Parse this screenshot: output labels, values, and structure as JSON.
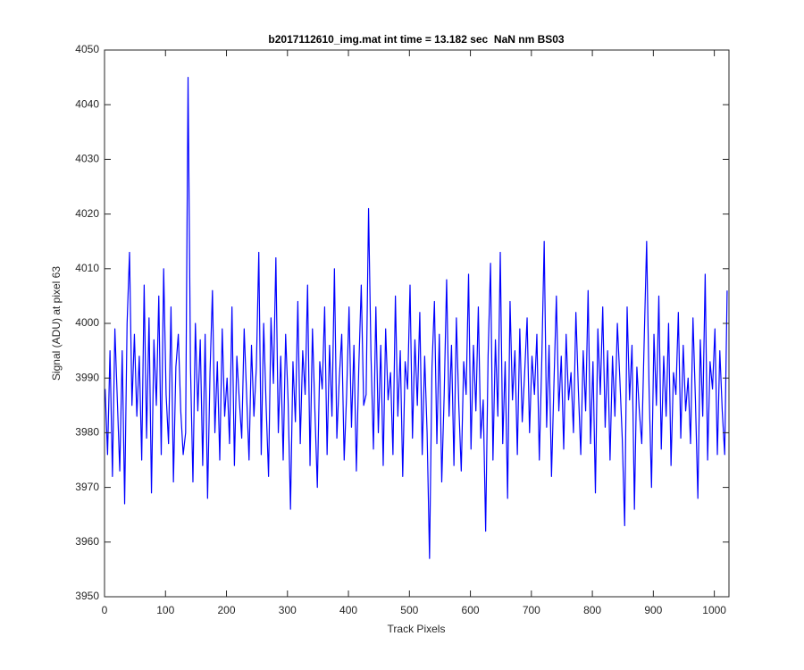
{
  "chart_data": {
    "type": "line",
    "title": "b2017112610_img.mat int time = 13.182 sec  NaN nm BS03",
    "x_label": "Track Pixels",
    "y_label": "Signal (ADU) at pixel 63",
    "xlim": [
      0,
      1024
    ],
    "ylim": [
      3950,
      4050
    ],
    "xticks": [
      0,
      100,
      200,
      300,
      400,
      500,
      600,
      700,
      800,
      900,
      1000
    ],
    "yticks": [
      3950,
      3960,
      3970,
      3980,
      3990,
      4000,
      4010,
      4020,
      4030,
      4040,
      4050
    ],
    "grid": false,
    "series": [
      {
        "color": "#0000ff",
        "x": [
          1,
          5,
          9,
          13,
          17,
          21,
          25,
          29,
          33,
          37,
          41,
          45,
          49,
          53,
          57,
          61,
          65,
          69,
          73,
          77,
          81,
          85,
          89,
          93,
          97,
          101,
          105,
          109,
          113,
          117,
          121,
          125,
          129,
          133,
          137,
          141,
          145,
          149,
          153,
          157,
          161,
          165,
          169,
          173,
          177,
          181,
          185,
          189,
          193,
          197,
          201,
          205,
          209,
          213,
          217,
          221,
          225,
          229,
          233,
          237,
          241,
          245,
          249,
          253,
          257,
          261,
          265,
          269,
          273,
          277,
          281,
          285,
          289,
          293,
          297,
          301,
          305,
          309,
          313,
          317,
          321,
          325,
          329,
          333,
          337,
          341,
          345,
          349,
          353,
          357,
          361,
          365,
          369,
          373,
          377,
          381,
          385,
          389,
          393,
          397,
          401,
          405,
          409,
          413,
          417,
          421,
          425,
          429,
          433,
          437,
          441,
          445,
          449,
          453,
          457,
          461,
          465,
          469,
          473,
          477,
          481,
          485,
          489,
          493,
          497,
          501,
          505,
          509,
          513,
          517,
          521,
          525,
          529,
          533,
          537,
          541,
          545,
          549,
          553,
          557,
          561,
          565,
          569,
          573,
          577,
          581,
          585,
          589,
          593,
          597,
          601,
          605,
          609,
          613,
          617,
          621,
          625,
          629,
          633,
          637,
          641,
          645,
          649,
          653,
          657,
          661,
          665,
          669,
          673,
          677,
          681,
          685,
          689,
          693,
          697,
          701,
          705,
          709,
          713,
          717,
          721,
          725,
          729,
          733,
          737,
          741,
          745,
          749,
          753,
          757,
          761,
          765,
          769,
          773,
          777,
          781,
          785,
          789,
          793,
          797,
          801,
          805,
          809,
          813,
          817,
          821,
          825,
          829,
          833,
          837,
          841,
          845,
          849,
          853,
          857,
          861,
          865,
          869,
          873,
          877,
          881,
          885,
          889,
          893,
          897,
          901,
          905,
          909,
          913,
          917,
          921,
          925,
          929,
          933,
          937,
          941,
          945,
          949,
          953,
          957,
          961,
          965,
          969,
          973,
          977,
          981,
          985,
          989,
          993,
          997,
          1001,
          1005,
          1009,
          1013,
          1017,
          1021
        ],
        "values": [
          3988,
          3976,
          3995,
          3972,
          3999,
          3986,
          3973,
          3995,
          3967,
          4000,
          4013,
          3985,
          3998,
          3983,
          3994,
          3975,
          4007,
          3979,
          4001,
          3969,
          3997,
          3985,
          4005,
          3976,
          4010,
          3987,
          3978,
          4003,
          3971,
          3992,
          3998,
          3984,
          3976,
          3980,
          4045,
          3992,
          3971,
          4000,
          3984,
          3997,
          3974,
          3998,
          3968,
          3991,
          4006,
          3980,
          3993,
          3975,
          3999,
          3983,
          3990,
          3978,
          4003,
          3974,
          3994,
          3986,
          3979,
          3999,
          3987,
          3975,
          3996,
          3983,
          3992,
          4013,
          3976,
          4000,
          3985,
          3972,
          4001,
          3989,
          4012,
          3980,
          3994,
          3975,
          3998,
          3986,
          3966,
          3993,
          3982,
          4004,
          3978,
          3995,
          3987,
          4007,
          3974,
          3999,
          3984,
          3970,
          3993,
          3988,
          4003,
          3976,
          3996,
          3983,
          4010,
          3979,
          3990,
          3998,
          3975,
          3987,
          4003,
          3981,
          3996,
          3973,
          3992,
          4007,
          3985,
          3987,
          4021,
          3994,
          3977,
          4003,
          3980,
          3996,
          3974,
          3999,
          3986,
          3991,
          3976,
          4005,
          3983,
          3995,
          3972,
          3993,
          3988,
          4007,
          3979,
          3997,
          3985,
          4002,
          3976,
          3994,
          3980,
          3957,
          3992,
          4004,
          3978,
          3998,
          3971,
          3987,
          4008,
          3983,
          3996,
          3974,
          4001,
          3985,
          3973,
          3993,
          3987,
          4009,
          3977,
          3996,
          3984,
          4003,
          3979,
          3986,
          3962,
          3994,
          4011,
          3975,
          3997,
          3983,
          4013,
          3978,
          3993,
          3968,
          4004,
          3986,
          3995,
          3976,
          3999,
          3982,
          3991,
          4001,
          3980,
          3994,
          3987,
          3998,
          3975,
          3993,
          4015,
          3981,
          3996,
          3972,
          3989,
          4005,
          3984,
          3994,
          3977,
          3998,
          3986,
          3991,
          3980,
          4002,
          3988,
          3976,
          3995,
          3984,
          4006,
          3978,
          3993,
          3969,
          3999,
          3987,
          4003,
          3981,
          3995,
          3975,
          3994,
          3983,
          4000,
          3990,
          3979,
          3963,
          4003,
          3986,
          3996,
          3966,
          3992,
          3984,
          3978,
          3997,
          4015,
          3988,
          3970,
          3998,
          3985,
          4005,
          3977,
          3994,
          3983,
          4000,
          3974,
          3991,
          3987,
          4002,
          3979,
          3996,
          3984,
          3990,
          3978,
          4001,
          3986,
          3968,
          3997,
          3983,
          4009,
          3975,
          3993,
          3988,
          3999,
          3976,
          3995,
          3984,
          3976,
          4006
        ]
      }
    ]
  }
}
